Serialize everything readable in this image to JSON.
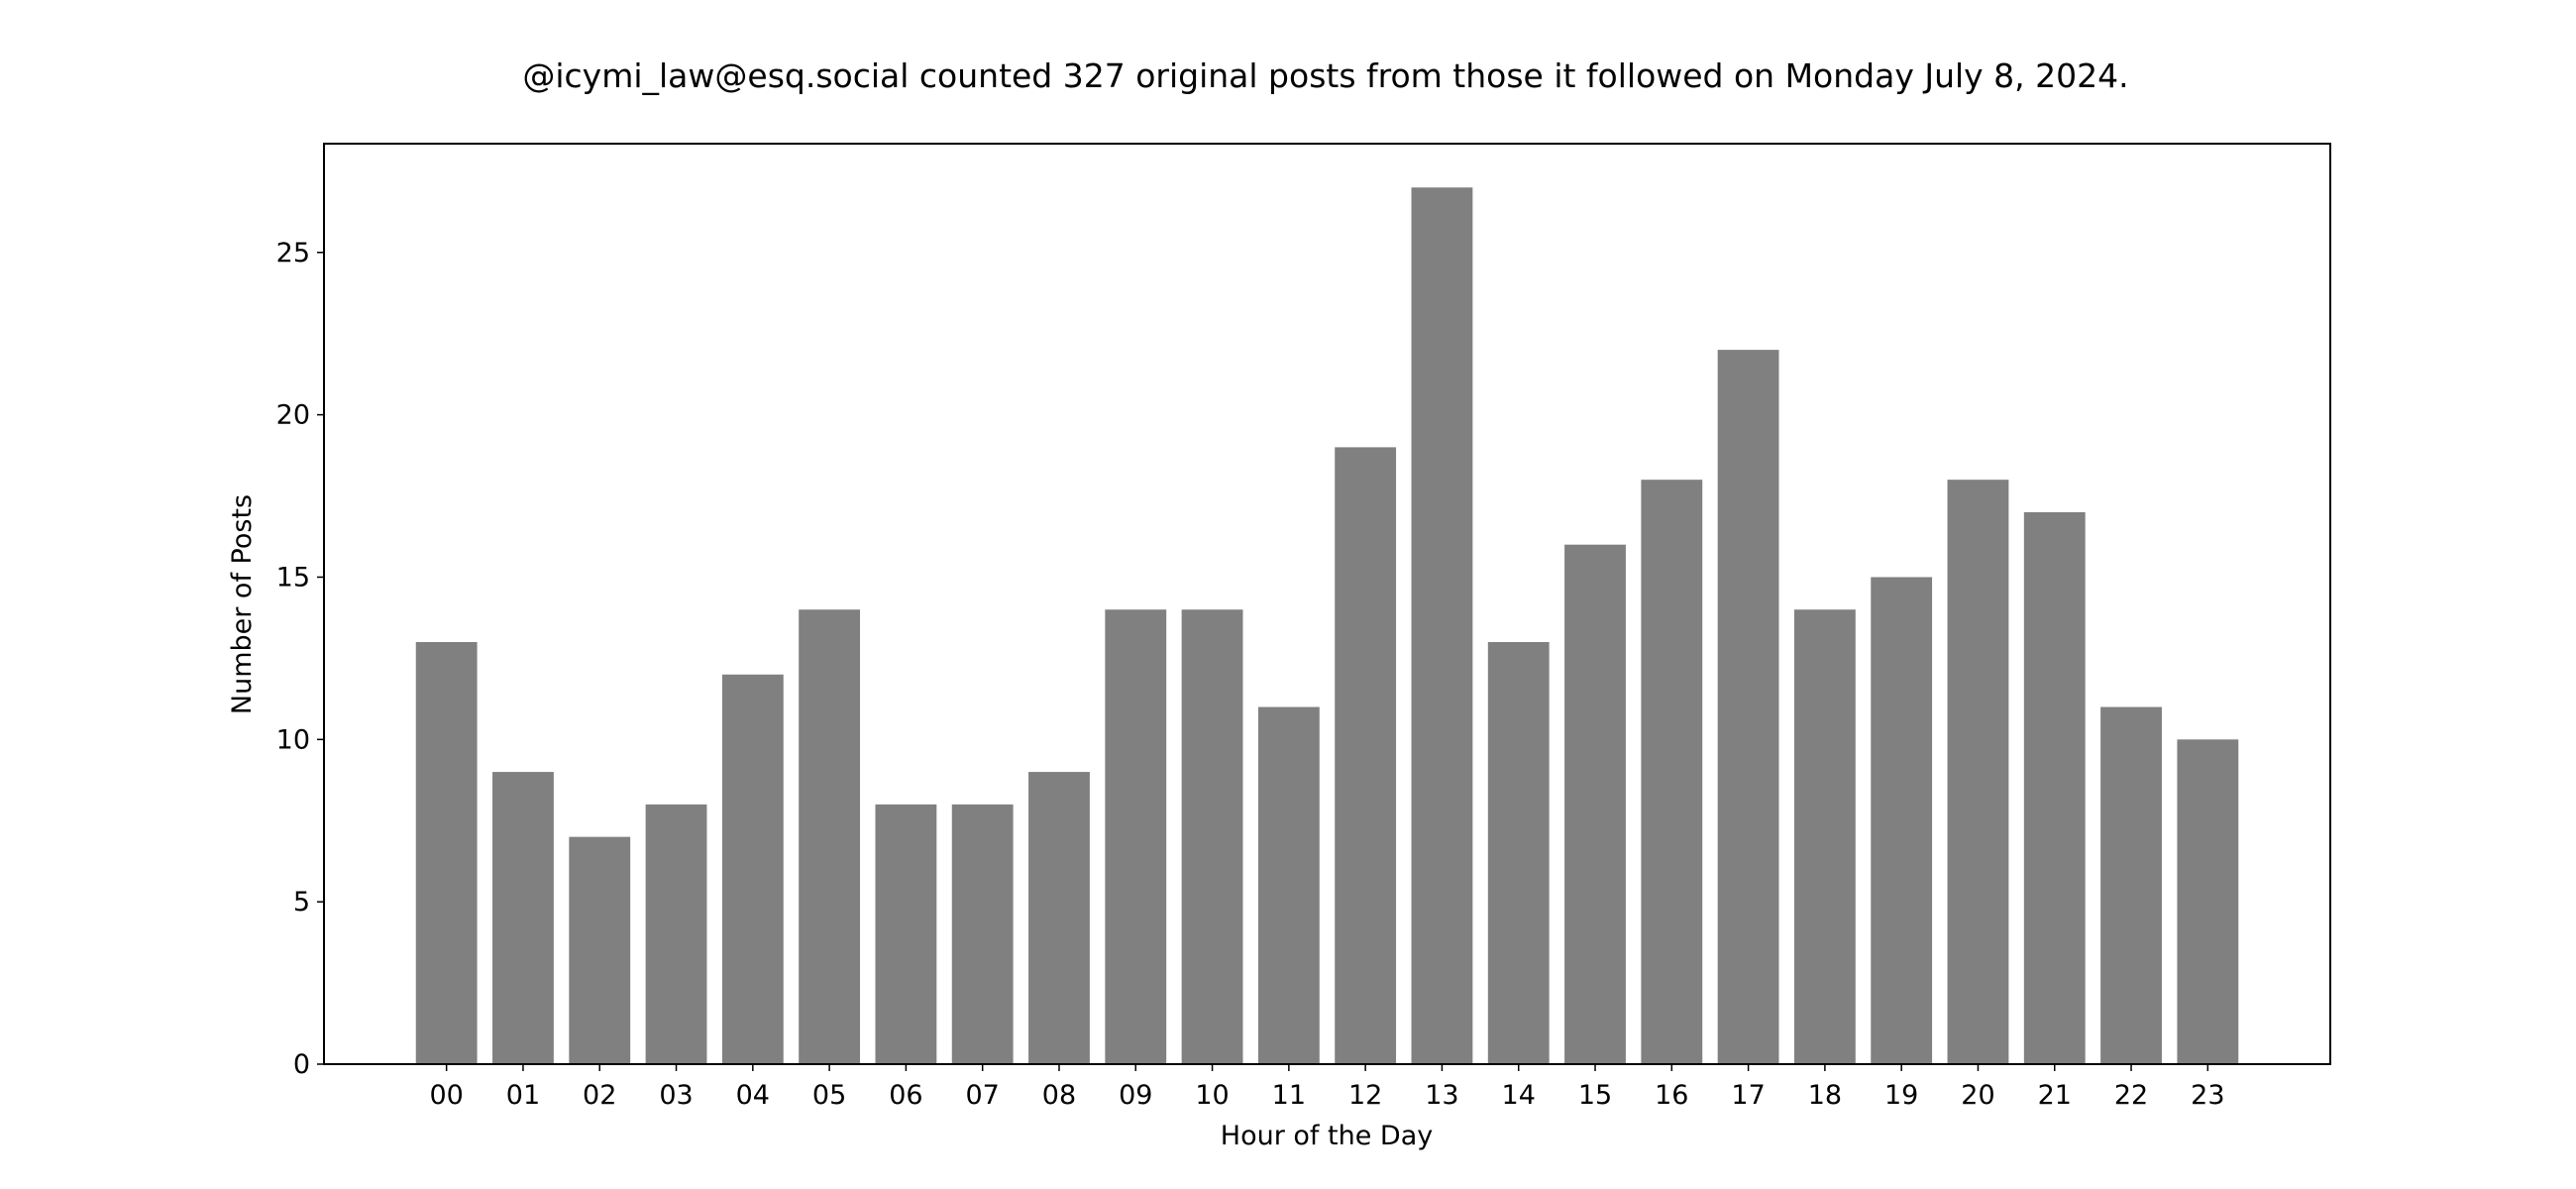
{
  "chart_data": {
    "type": "bar",
    "title": "@icymi_law@esq.social counted 327 original posts from those it followed on Monday July 8, 2024.",
    "xlabel": "Hour of the Day",
    "ylabel": "Number of Posts",
    "categories": [
      "00",
      "01",
      "02",
      "03",
      "04",
      "05",
      "06",
      "07",
      "08",
      "09",
      "10",
      "11",
      "12",
      "13",
      "14",
      "15",
      "16",
      "17",
      "18",
      "19",
      "20",
      "21",
      "22",
      "23"
    ],
    "values": [
      13,
      9,
      7,
      8,
      12,
      14,
      8,
      8,
      9,
      14,
      14,
      11,
      19,
      27,
      13,
      16,
      18,
      22,
      14,
      15,
      18,
      17,
      11,
      10
    ],
    "ylim": [
      0,
      28.35
    ],
    "yticks": [
      0,
      5,
      10,
      15,
      20,
      25
    ],
    "grid": false,
    "legend": "none",
    "bar_color": "#808080"
  }
}
